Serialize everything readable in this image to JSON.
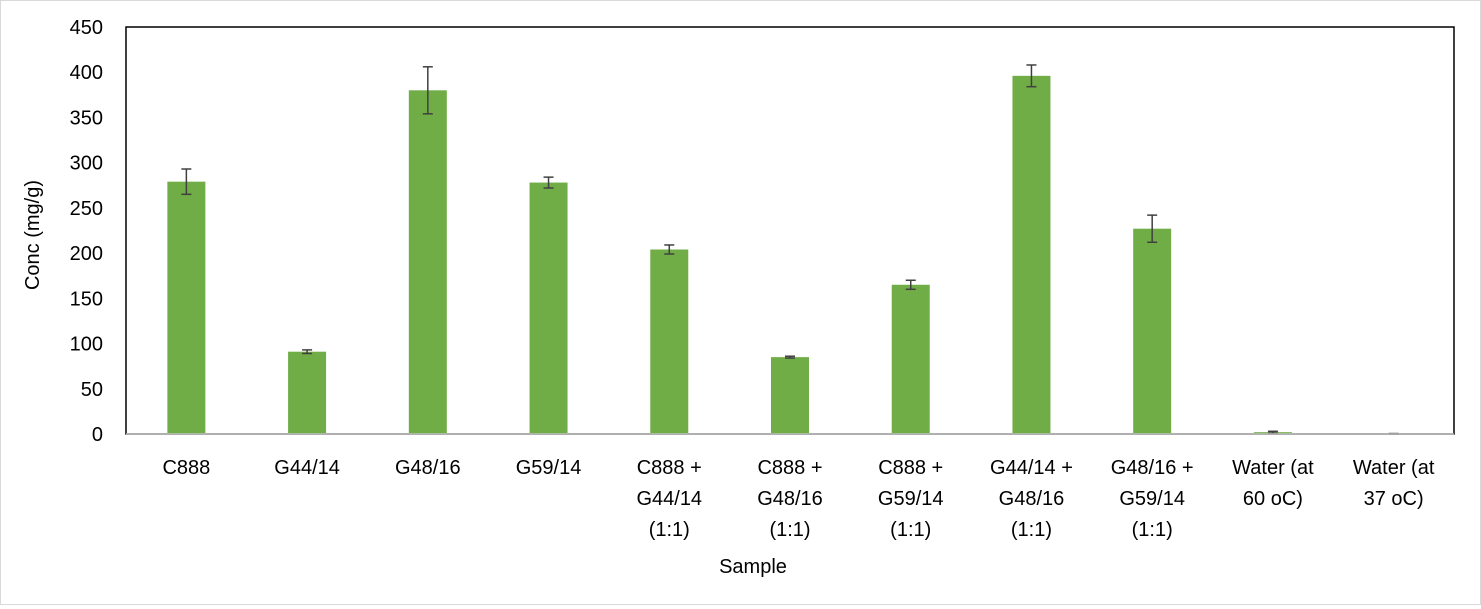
{
  "chart_data": {
    "type": "bar",
    "categories": [
      [
        "C888"
      ],
      [
        "G44/14"
      ],
      [
        "G48/16"
      ],
      [
        "G59/14"
      ],
      [
        "C888 +",
        "G44/14",
        "(1:1)"
      ],
      [
        "C888 +",
        "G48/16",
        "(1:1)"
      ],
      [
        "C888 +",
        "G59/14",
        "(1:1)"
      ],
      [
        "G44/14 +",
        "G48/16",
        "(1:1)"
      ],
      [
        "G48/16 +",
        "G59/14",
        "(1:1)"
      ],
      [
        "Water (at",
        "60 oC)"
      ],
      [
        "Water (at",
        "37 oC)"
      ]
    ],
    "series": [
      {
        "values": [
          279,
          91,
          380,
          278,
          204,
          85,
          165,
          396,
          227,
          2,
          0
        ],
        "errors": [
          14,
          2,
          26,
          6,
          5,
          1,
          5,
          12,
          15,
          1,
          0.5
        ],
        "color": "#70ad47"
      }
    ],
    "xlabel": "Sample",
    "ylabel": "Conc (mg/g)",
    "ylim": [
      0,
      450
    ],
    "yticks": [
      0,
      50,
      100,
      150,
      200,
      250,
      300,
      350,
      400,
      450
    ],
    "grid": false,
    "legend": "none",
    "error_bar_color": "#404040"
  }
}
